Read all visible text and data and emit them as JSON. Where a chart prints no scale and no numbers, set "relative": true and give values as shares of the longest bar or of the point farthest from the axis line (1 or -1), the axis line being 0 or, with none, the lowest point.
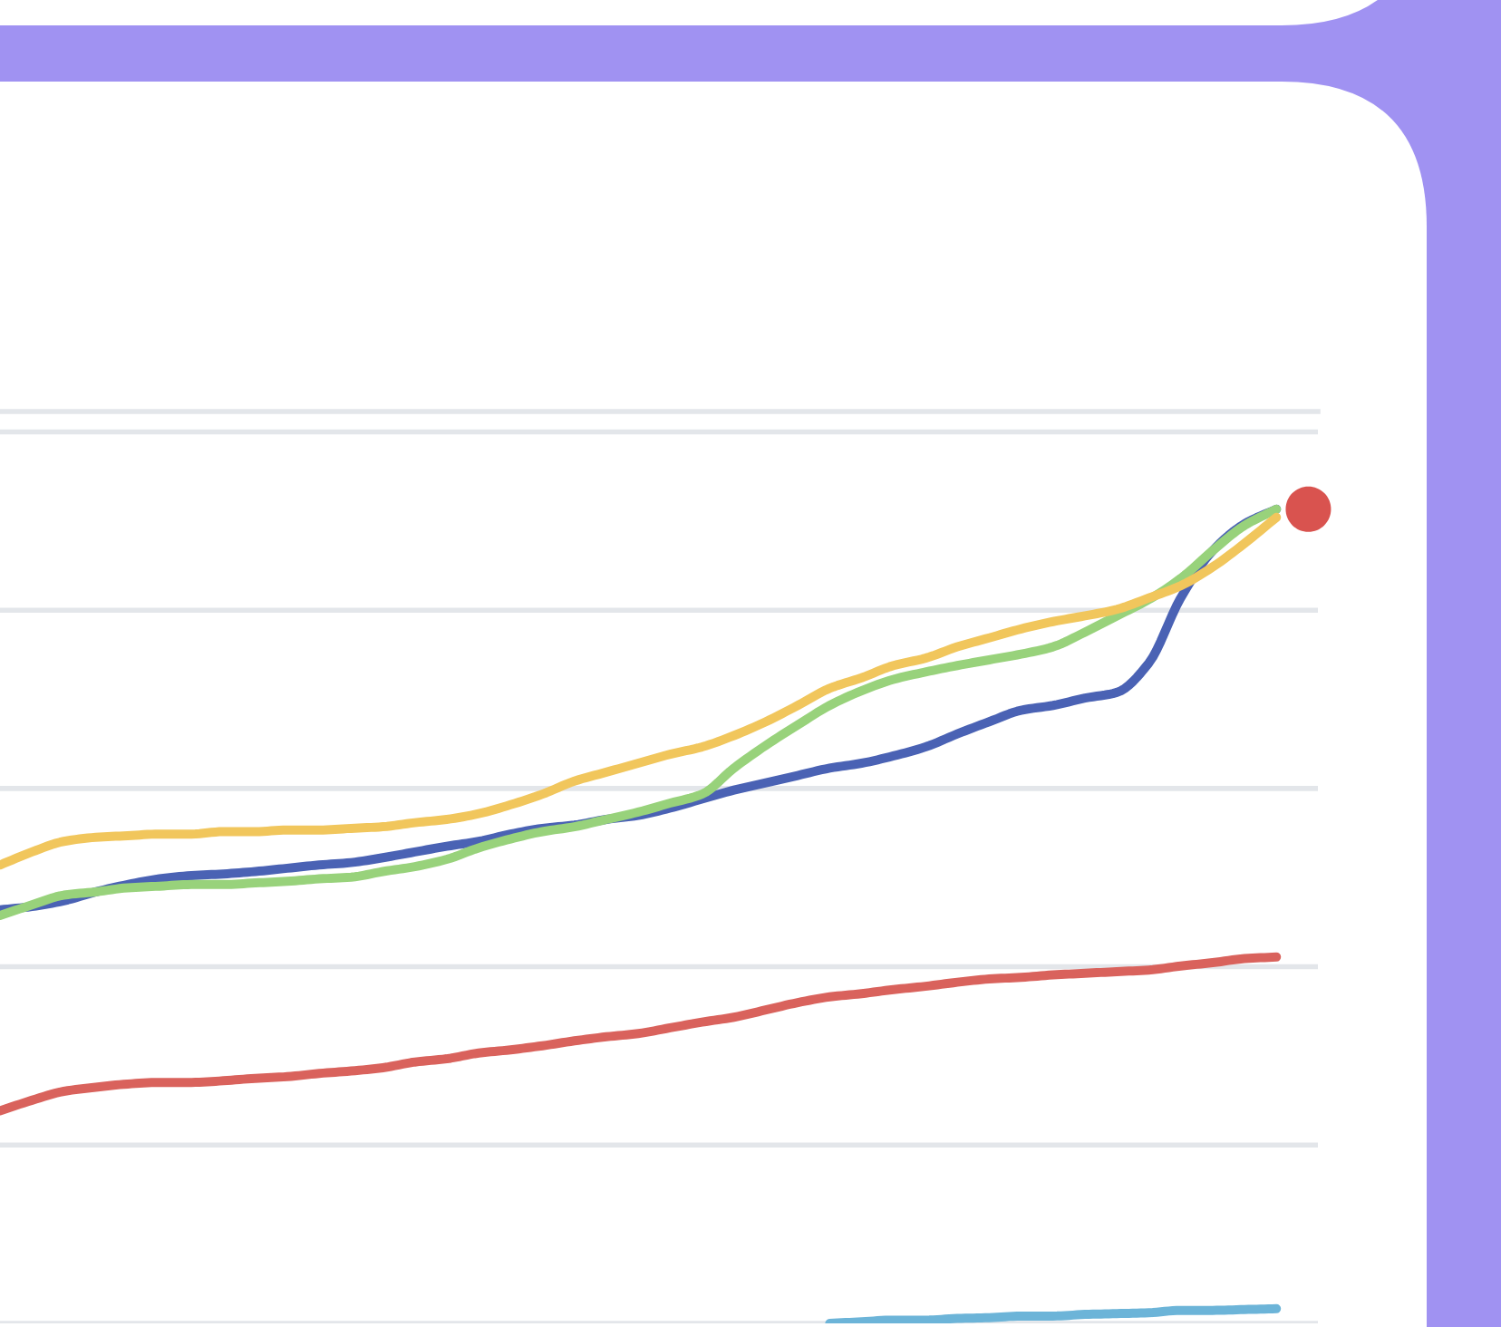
{
  "chart_data": {
    "type": "line",
    "relative": true,
    "grid": "y",
    "categories": [
      null,
      null,
      null,
      null,
      null,
      null,
      null,
      null,
      null,
      null,
      null,
      null,
      null,
      null,
      null,
      null,
      null,
      null,
      null,
      null,
      null,
      null,
      null,
      null,
      null,
      null,
      null,
      null,
      null,
      null,
      null,
      null,
      null,
      null,
      null,
      null,
      null,
      null,
      null,
      null,
      null
    ],
    "series": [
      {
        "color": "#d9625c",
        "values": [
          0.261,
          0.274,
          0.285,
          0.29,
          0.294,
          0.296,
          0.296,
          0.298,
          0.301,
          0.303,
          0.307,
          0.31,
          0.314,
          0.321,
          0.325,
          0.332,
          0.336,
          0.341,
          0.347,
          0.352,
          0.356,
          0.363,
          0.37,
          0.376,
          0.385,
          0.394,
          0.401,
          0.405,
          0.41,
          0.414,
          0.419,
          0.423,
          0.425,
          0.428,
          0.43,
          0.432,
          0.434,
          0.439,
          0.443,
          0.448,
          0.45
        ]
      },
      {
        "color": "#6cb4d8",
        "values": [
          null,
          null,
          null,
          null,
          null,
          null,
          null,
          null,
          null,
          null,
          null,
          null,
          null,
          null,
          null,
          null,
          null,
          null,
          null,
          null,
          null,
          null,
          null,
          null,
          null,
          null,
          0.0,
          0.002,
          0.004,
          0.004,
          0.006,
          0.007,
          0.009,
          0.009,
          0.011,
          0.012,
          0.013,
          0.016,
          0.016,
          0.017,
          0.018
        ]
      },
      {
        "color": "#4a62b4",
        "values": [
          0.508,
          0.512,
          0.519,
          0.53,
          0.539,
          0.546,
          0.55,
          0.552,
          0.555,
          0.559,
          0.563,
          0.566,
          0.572,
          0.579,
          0.586,
          0.592,
          0.601,
          0.608,
          0.612,
          0.619,
          0.624,
          0.633,
          0.644,
          0.655,
          0.664,
          0.673,
          0.682,
          0.688,
          0.697,
          0.708,
          0.724,
          0.739,
          0.753,
          0.759,
          0.768,
          0.775,
          0.811,
          0.891,
          0.949,
          0.982,
          1.0
        ]
      },
      {
        "color": "#98d27b",
        "values": [
          0.501,
          0.514,
          0.526,
          0.53,
          0.535,
          0.537,
          0.539,
          0.539,
          0.541,
          0.543,
          0.546,
          0.548,
          0.555,
          0.561,
          0.57,
          0.584,
          0.595,
          0.604,
          0.61,
          0.619,
          0.628,
          0.639,
          0.65,
          0.682,
          0.71,
          0.735,
          0.759,
          0.777,
          0.791,
          0.8,
          0.808,
          0.815,
          0.822,
          0.831,
          0.849,
          0.869,
          0.889,
          0.915,
          0.949,
          0.98,
          1.0
        ]
      },
      {
        "color": "#f1c65c",
        "values": [
          0.563,
          0.579,
          0.592,
          0.597,
          0.599,
          0.601,
          0.601,
          0.604,
          0.604,
          0.606,
          0.606,
          0.608,
          0.61,
          0.615,
          0.619,
          0.626,
          0.637,
          0.65,
          0.666,
          0.677,
          0.688,
          0.699,
          0.708,
          0.722,
          0.739,
          0.759,
          0.78,
          0.793,
          0.808,
          0.817,
          0.831,
          0.842,
          0.853,
          0.862,
          0.869,
          0.877,
          0.891,
          0.906,
          0.929,
          0.958,
          0.99
        ]
      }
    ]
  }
}
